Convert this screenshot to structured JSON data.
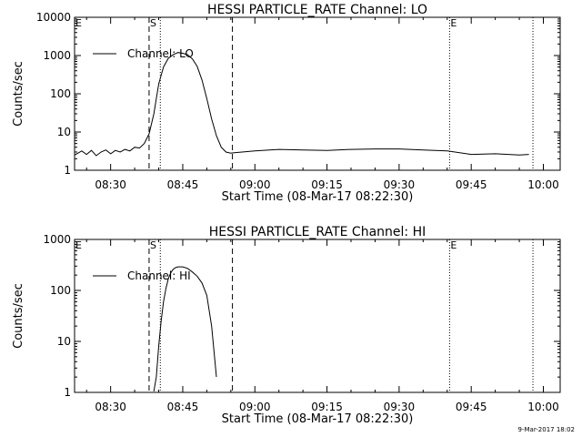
{
  "footer": "9-Mar-2017 18:02",
  "chart_data": [
    {
      "type": "line",
      "title": "HESSI PARTICLE_RATE Channel: LO",
      "xlabel": "Start Time (08-Mar-17 08:22:30)",
      "ylabel": "Counts/sec",
      "yscale": "log",
      "ylim": [
        1,
        10000
      ],
      "xlim": [
        "08:22:30",
        "10:03:30"
      ],
      "xticks": [
        "08:30",
        "08:45",
        "09:00",
        "09:15",
        "09:30",
        "09:45",
        "10:00"
      ],
      "yticks": [
        "1",
        "10",
        "100",
        "1000",
        "10000"
      ],
      "legend": {
        "label": "Channel: LO",
        "placement": "top-left"
      },
      "markers": [
        {
          "label": "E",
          "time": "08:22:30",
          "style": "dotted"
        },
        {
          "label": "S",
          "time": "08:38:00",
          "style": "dashed"
        },
        {
          "label": "",
          "time": "08:40:20",
          "style": "dotted"
        },
        {
          "label": "",
          "time": "08:55:20",
          "style": "dashed"
        },
        {
          "label": "E",
          "time": "09:40:30",
          "style": "dotted"
        },
        {
          "label": "",
          "time": "09:57:50",
          "style": "dotted"
        }
      ],
      "series": [
        {
          "name": "Channel: LO",
          "x": [
            "08:22:30",
            "08:24:00",
            "08:25:00",
            "08:26:00",
            "08:27:00",
            "08:28:00",
            "08:29:00",
            "08:30:00",
            "08:31:00",
            "08:32:00",
            "08:33:00",
            "08:34:00",
            "08:35:00",
            "08:36:00",
            "08:37:00",
            "08:38:00",
            "08:39:00",
            "08:40:00",
            "08:41:00",
            "08:42:00",
            "08:43:00",
            "08:44:00",
            "08:45:00",
            "08:46:00",
            "08:47:00",
            "08:48:00",
            "08:49:00",
            "08:50:00",
            "08:51:00",
            "08:52:00",
            "08:53:00",
            "08:54:00",
            "08:55:00",
            "08:56:00",
            "09:00:00",
            "09:05:00",
            "09:10:00",
            "09:15:00",
            "09:20:00",
            "09:25:00",
            "09:30:00",
            "09:35:00",
            "09:40:00",
            "09:45:00",
            "09:50:00",
            "09:55:00",
            "09:57:00"
          ],
          "y": [
            2.5,
            3.2,
            2.6,
            3.3,
            2.4,
            3.0,
            3.4,
            2.7,
            3.3,
            3.0,
            3.5,
            3.2,
            4.0,
            3.8,
            5.0,
            9.0,
            30,
            180,
            500,
            850,
            1050,
            1200,
            1150,
            1050,
            820,
            520,
            230,
            75,
            22,
            8,
            4.0,
            3.0,
            2.8,
            2.9,
            3.2,
            3.5,
            3.4,
            3.3,
            3.5,
            3.6,
            3.6,
            3.4,
            3.2,
            2.6,
            2.7,
            2.5,
            2.6
          ]
        }
      ]
    },
    {
      "type": "line",
      "title": "HESSI PARTICLE_RATE Channel: HI",
      "xlabel": "Start Time (08-Mar-17 08:22:30)",
      "ylabel": "Counts/sec",
      "yscale": "log",
      "ylim": [
        1,
        1000
      ],
      "xlim": [
        "08:22:30",
        "10:03:30"
      ],
      "xticks": [
        "08:30",
        "08:45",
        "09:00",
        "09:15",
        "09:30",
        "09:45",
        "10:00"
      ],
      "yticks": [
        "1",
        "10",
        "100",
        "1000"
      ],
      "legend": {
        "label": "Channel: HI",
        "placement": "top-left"
      },
      "markers": [
        {
          "label": "E",
          "time": "08:22:30",
          "style": "dotted"
        },
        {
          "label": "S",
          "time": "08:38:00",
          "style": "dashed"
        },
        {
          "label": "",
          "time": "08:40:20",
          "style": "dotted"
        },
        {
          "label": "",
          "time": "08:55:20",
          "style": "dashed"
        },
        {
          "label": "E",
          "time": "09:40:30",
          "style": "dotted"
        },
        {
          "label": "",
          "time": "09:57:50",
          "style": "dotted"
        }
      ],
      "series": [
        {
          "name": "Channel: HI",
          "x": [
            "08:39:00",
            "08:39:30",
            "08:40:00",
            "08:40:30",
            "08:41:00",
            "08:41:30",
            "08:42:00",
            "08:42:30",
            "08:43:00",
            "08:43:30",
            "08:44:00",
            "08:45:00",
            "08:46:00",
            "08:47:00",
            "08:48:00",
            "08:49:00",
            "08:50:00",
            "08:51:00",
            "08:52:00"
          ],
          "y": [
            1.05,
            2,
            8,
            25,
            60,
            110,
            170,
            220,
            260,
            280,
            290,
            290,
            270,
            230,
            190,
            140,
            80,
            20,
            2
          ]
        }
      ]
    }
  ]
}
